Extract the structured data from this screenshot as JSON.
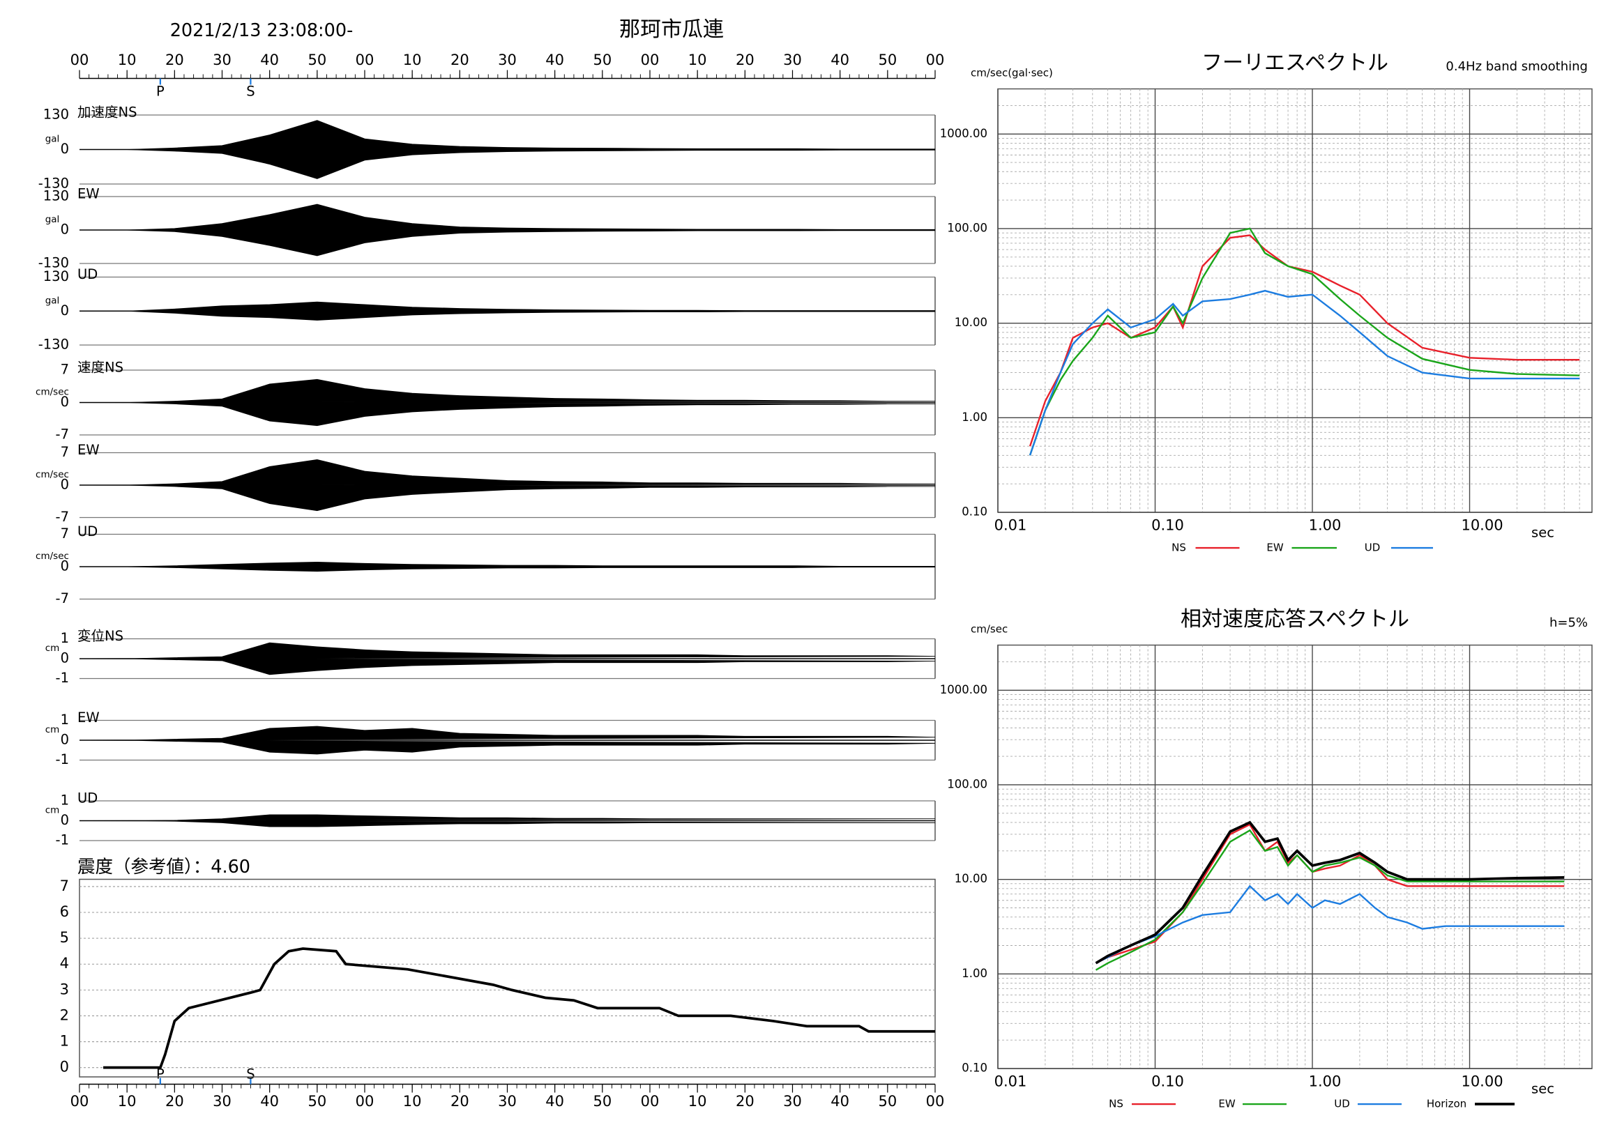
{
  "chart_data": [
    {
      "type": "area",
      "title": "加速度NS",
      "ylabel": "gal",
      "header": "2021/2/13 23:08:00-",
      "station": "那珂市瓜連",
      "xaxis_position": "top",
      "xlim": [
        0,
        180
      ],
      "xticks": [
        {
          "value": 0,
          "label": "00"
        },
        10,
        20,
        30,
        40,
        50,
        {
          "value": 60,
          "label": "00"
        },
        {
          "value": 70,
          "label": "10"
        },
        {
          "value": 80,
          "label": "20"
        },
        {
          "value": 90,
          "label": "30"
        },
        {
          "value": 100,
          "label": "40"
        },
        {
          "value": 110,
          "label": "50"
        },
        {
          "value": 120,
          "label": "00"
        },
        {
          "value": 130,
          "label": "10"
        },
        {
          "value": 140,
          "label": "20"
        },
        {
          "value": 150,
          "label": "30"
        },
        {
          "value": 160,
          "label": "40"
        },
        {
          "value": 170,
          "label": "50"
        },
        {
          "value": 180,
          "label": "00"
        }
      ],
      "annotations": [
        {
          "label": "P",
          "value": 17
        },
        {
          "label": "S",
          "value": 36
        }
      ],
      "ylim": [
        -130,
        130
      ],
      "yticks": [
        130,
        0,
        -130
      ],
      "color": "#000000",
      "x": [
        0,
        10,
        20,
        30,
        40,
        50,
        60,
        70,
        80,
        90,
        100,
        110,
        120,
        130,
        140,
        150,
        160,
        170,
        180
      ],
      "values": [
        0,
        0,
        6,
        15,
        55,
        110,
        40,
        20,
        12,
        8,
        6,
        5,
        4,
        3,
        3,
        3,
        2,
        2,
        2
      ]
    },
    {
      "type": "area",
      "title": "EW",
      "ylabel": "gal",
      "xlim": [
        0,
        180
      ],
      "ylim": [
        -130,
        130
      ],
      "yticks": [
        130,
        0,
        -130
      ],
      "color": "#000000",
      "x": [
        0,
        10,
        20,
        30,
        40,
        50,
        60,
        70,
        80,
        90,
        100,
        110,
        120,
        130,
        140,
        150,
        160,
        170,
        180
      ],
      "values": [
        0,
        0,
        6,
        25,
        60,
        100,
        50,
        25,
        12,
        8,
        6,
        5,
        4,
        3,
        3,
        3,
        2,
        2,
        2
      ]
    },
    {
      "type": "area",
      "title": "UD",
      "ylabel": "gal",
      "xlim": [
        0,
        180
      ],
      "ylim": [
        -130,
        130
      ],
      "yticks": [
        130,
        0,
        -130
      ],
      "color": "#000000",
      "x": [
        0,
        10,
        20,
        30,
        40,
        50,
        60,
        70,
        80,
        90,
        100,
        110,
        120,
        130,
        140,
        150,
        160,
        170,
        180
      ],
      "values": [
        0,
        0,
        8,
        20,
        25,
        35,
        25,
        15,
        10,
        7,
        5,
        4,
        3,
        3,
        2,
        2,
        2,
        2,
        2
      ]
    },
    {
      "type": "area",
      "title": "速度NS",
      "ylabel": "cm/sec",
      "xlim": [
        0,
        180
      ],
      "ylim": [
        -7,
        7
      ],
      "yticks": [
        7,
        0,
        -7
      ],
      "color": "#000000",
      "x": [
        0,
        10,
        20,
        30,
        40,
        50,
        60,
        70,
        80,
        90,
        100,
        110,
        120,
        130,
        140,
        150,
        160,
        170,
        180
      ],
      "values": [
        0,
        0,
        0.3,
        0.8,
        4,
        5,
        3,
        2,
        1.5,
        1.2,
        0.9,
        0.8,
        0.6,
        0.5,
        0.5,
        0.4,
        0.4,
        0.3,
        0.3
      ]
    },
    {
      "type": "area",
      "title": "EW",
      "ylabel": "cm/sec",
      "xlim": [
        0,
        180
      ],
      "ylim": [
        -7,
        7
      ],
      "yticks": [
        7,
        0,
        -7
      ],
      "color": "#000000",
      "x": [
        0,
        10,
        20,
        30,
        40,
        50,
        60,
        70,
        80,
        90,
        100,
        110,
        120,
        130,
        140,
        150,
        160,
        170,
        180
      ],
      "values": [
        0,
        0,
        0.3,
        0.8,
        4,
        5.5,
        3,
        2,
        1.5,
        1,
        0.8,
        0.7,
        0.5,
        0.5,
        0.4,
        0.4,
        0.4,
        0.3,
        0.3
      ]
    },
    {
      "type": "area",
      "title": "UD",
      "ylabel": "cm/sec",
      "xlim": [
        0,
        180
      ],
      "ylim": [
        -7,
        7
      ],
      "yticks": [
        7,
        0,
        -7
      ],
      "color": "#000000",
      "x": [
        0,
        10,
        20,
        30,
        40,
        50,
        60,
        70,
        80,
        90,
        100,
        110,
        120,
        130,
        140,
        150,
        160,
        170,
        180
      ],
      "values": [
        0,
        0,
        0.2,
        0.5,
        0.8,
        1,
        0.7,
        0.5,
        0.4,
        0.3,
        0.3,
        0.2,
        0.2,
        0.2,
        0.2,
        0.2,
        0.1,
        0.1,
        0.1
      ]
    },
    {
      "type": "area",
      "title": "変位NS",
      "ylabel": "cm",
      "xlim": [
        0,
        180
      ],
      "ylim": [
        -1,
        1
      ],
      "yticks": [
        1,
        0,
        -1
      ],
      "color": "#000000",
      "x": [
        0,
        10,
        20,
        30,
        40,
        50,
        60,
        70,
        80,
        90,
        100,
        110,
        120,
        130,
        140,
        150,
        160,
        170,
        180
      ],
      "values": [
        0,
        0,
        0.05,
        0.1,
        0.8,
        0.6,
        0.45,
        0.35,
        0.3,
        0.25,
        0.2,
        0.2,
        0.2,
        0.2,
        0.15,
        0.15,
        0.15,
        0.15,
        0.12
      ]
    },
    {
      "type": "area",
      "title": "EW",
      "ylabel": "cm",
      "xlim": [
        0,
        180
      ],
      "ylim": [
        -1,
        1
      ],
      "yticks": [
        1,
        0,
        -1
      ],
      "color": "#000000",
      "x": [
        0,
        10,
        20,
        30,
        40,
        50,
        60,
        70,
        80,
        90,
        100,
        110,
        120,
        130,
        140,
        150,
        160,
        170,
        180
      ],
      "values": [
        0,
        0,
        0.05,
        0.1,
        0.6,
        0.7,
        0.5,
        0.6,
        0.35,
        0.3,
        0.25,
        0.25,
        0.25,
        0.25,
        0.2,
        0.2,
        0.2,
        0.2,
        0.15
      ]
    },
    {
      "type": "area",
      "title": "UD",
      "ylabel": "cm",
      "xlim": [
        0,
        180
      ],
      "ylim": [
        -1,
        1
      ],
      "yticks": [
        1,
        0,
        -1
      ],
      "color": "#000000",
      "x": [
        0,
        10,
        20,
        30,
        40,
        50,
        60,
        70,
        80,
        90,
        100,
        110,
        120,
        130,
        140,
        150,
        160,
        170,
        180
      ],
      "values": [
        0,
        0,
        0.02,
        0.1,
        0.3,
        0.3,
        0.25,
        0.2,
        0.15,
        0.15,
        0.12,
        0.12,
        0.1,
        0.1,
        0.1,
        0.1,
        0.1,
        0.1,
        0.1
      ]
    },
    {
      "type": "line",
      "title": "震度（参考値）：4.60",
      "xaxis_position": "bottom",
      "xlim": [
        0,
        180
      ],
      "xticks": [
        {
          "value": 0,
          "label": "00"
        },
        10,
        20,
        30,
        40,
        50,
        {
          "value": 60,
          "label": "00"
        },
        {
          "value": 70,
          "label": "10"
        },
        {
          "value": 80,
          "label": "20"
        },
        {
          "value": 90,
          "label": "30"
        },
        {
          "value": 100,
          "label": "40"
        },
        {
          "value": 110,
          "label": "50"
        },
        {
          "value": 120,
          "label": "00"
        },
        {
          "value": 130,
          "label": "10"
        },
        {
          "value": 140,
          "label": "20"
        },
        {
          "value": 150,
          "label": "30"
        },
        {
          "value": 160,
          "label": "40"
        },
        {
          "value": 170,
          "label": "50"
        },
        {
          "value": 180,
          "label": "00"
        }
      ],
      "annotations": [
        {
          "label": "P",
          "value": 17
        },
        {
          "label": "S",
          "value": 36
        }
      ],
      "ylim": [
        -0.36,
        7.28
      ],
      "yticks": [
        0,
        1,
        2,
        3,
        4,
        5,
        6,
        7
      ],
      "grid": true,
      "color": "#000000",
      "x": [
        5,
        17,
        18,
        20,
        23,
        29.5,
        36,
        38,
        41,
        44,
        47,
        54,
        56,
        69,
        78,
        87,
        91,
        98,
        104,
        109,
        122,
        126,
        137,
        146,
        153,
        164,
        166,
        180
      ],
      "values": [
        0,
        0,
        0.5,
        1.8,
        2.3,
        2.6,
        2.9,
        3.0,
        4.0,
        4.5,
        4.6,
        4.5,
        4.0,
        3.8,
        3.5,
        3.2,
        3.0,
        2.7,
        2.6,
        2.3,
        2.3,
        2.0,
        2.0,
        1.8,
        1.6,
        1.6,
        1.4,
        1.4
      ]
    },
    {
      "type": "line",
      "title": "フーリエスペクトル",
      "subtitle": "0.4Hz band smoothing",
      "ylabel": "cm/sec(gal·sec)",
      "xlabel": "sec",
      "xscale": "log",
      "yscale": "log",
      "grid": true,
      "xlim": [
        0.01,
        60
      ],
      "ylim": [
        0.1,
        3000
      ],
      "xticks": [
        0.01,
        {
          "value": 0.1,
          "label": "0.10"
        },
        {
          "value": 1,
          "label": "1.00"
        },
        {
          "value": 10,
          "label": "10.00"
        }
      ],
      "yticks": [
        {
          "value": 0.1,
          "label": "0.10"
        },
        {
          "value": 1,
          "label": "1.00"
        },
        {
          "value": 10,
          "label": "10.00"
        },
        {
          "value": 100,
          "label": "100.00"
        },
        {
          "value": 1000,
          "label": "1000.00"
        }
      ],
      "x": [
        0.016,
        0.02,
        0.025,
        0.03,
        0.04,
        0.05,
        0.07,
        0.1,
        0.13,
        0.15,
        0.2,
        0.3,
        0.4,
        0.5,
        0.7,
        1,
        1.5,
        2,
        3,
        5,
        10,
        20,
        50
      ],
      "series": [
        {
          "name": "NS",
          "color": "#e8202a",
          "values": [
            0.5,
            1.5,
            3,
            7,
            9,
            10,
            7,
            9,
            15,
            9,
            40,
            80,
            85,
            60,
            40,
            35,
            25,
            20,
            10,
            5.5,
            4.3,
            4.1,
            4.1
          ]
        },
        {
          "name": "EW",
          "color": "#1aa51a",
          "values": [
            0.4,
            1.2,
            2.5,
            4,
            7,
            12,
            7,
            8,
            15,
            10,
            30,
            90,
            100,
            55,
            40,
            33,
            18,
            12,
            7,
            4.2,
            3.2,
            2.9,
            2.8
          ]
        },
        {
          "name": "UD",
          "color": "#1c7ce0",
          "values": [
            0.4,
            1.2,
            3,
            6,
            10,
            14,
            9,
            11,
            16,
            12,
            17,
            18,
            20,
            22,
            19,
            20,
            12,
            8,
            4.5,
            3,
            2.6,
            2.6,
            2.6
          ]
        }
      ]
    },
    {
      "type": "line",
      "title": "相対速度応答スペクトル",
      "subtitle": "h=5%",
      "ylabel": "cm/sec",
      "xlabel": "sec",
      "xscale": "log",
      "yscale": "log",
      "grid": true,
      "xlim": [
        0.01,
        60
      ],
      "ylim": [
        0.1,
        3000
      ],
      "xticks": [
        0.01,
        {
          "value": 0.1,
          "label": "0.10"
        },
        {
          "value": 1,
          "label": "1.00"
        },
        {
          "value": 10,
          "label": "10.00"
        }
      ],
      "yticks": [
        {
          "value": 0.1,
          "label": "0.10"
        },
        {
          "value": 1,
          "label": "1.00"
        },
        {
          "value": 10,
          "label": "10.00"
        },
        {
          "value": 100,
          "label": "100.00"
        },
        {
          "value": 1000,
          "label": "1000.00"
        }
      ],
      "x": [
        0.042,
        0.05,
        0.07,
        0.1,
        0.15,
        0.2,
        0.3,
        0.4,
        0.5,
        0.6,
        0.7,
        0.8,
        1,
        1.2,
        1.5,
        2,
        2.5,
        3,
        4,
        5,
        7,
        10,
        20,
        40
      ],
      "series": [
        {
          "name": "NS",
          "color": "#e8202a",
          "values": [
            1.3,
            1.5,
            1.8,
            2.2,
            4.5,
            10,
            30,
            38,
            20,
            25,
            15,
            18,
            12,
            13,
            14,
            18,
            14,
            10,
            8.5,
            8.5,
            8.5,
            8.5,
            8.5,
            8.5
          ]
        },
        {
          "name": "EW",
          "color": "#1aa51a",
          "values": [
            1.1,
            1.3,
            1.7,
            2.3,
            4.5,
            9,
            25,
            33,
            20,
            22,
            14,
            18,
            12,
            14,
            15,
            17,
            14,
            11,
            9.5,
            9.5,
            9.5,
            9.5,
            9.5,
            9.5
          ]
        },
        {
          "name": "UD",
          "color": "#1c7ce0",
          "values": [
            1.3,
            1.5,
            2.0,
            2.5,
            3.5,
            4.2,
            4.5,
            8.5,
            6,
            7,
            5.5,
            7,
            5,
            6,
            5.5,
            7,
            5,
            4,
            3.5,
            3,
            3.2,
            3.2,
            3.2,
            3.2
          ]
        },
        {
          "name": "Horizon",
          "color": "#000000",
          "values": [
            1.3,
            1.55,
            2.0,
            2.6,
            5,
            11,
            32,
            40,
            25,
            27,
            16,
            20,
            14,
            15,
            16,
            19,
            15,
            12,
            10,
            10,
            10,
            10,
            10.3,
            10.5
          ]
        }
      ]
    }
  ]
}
